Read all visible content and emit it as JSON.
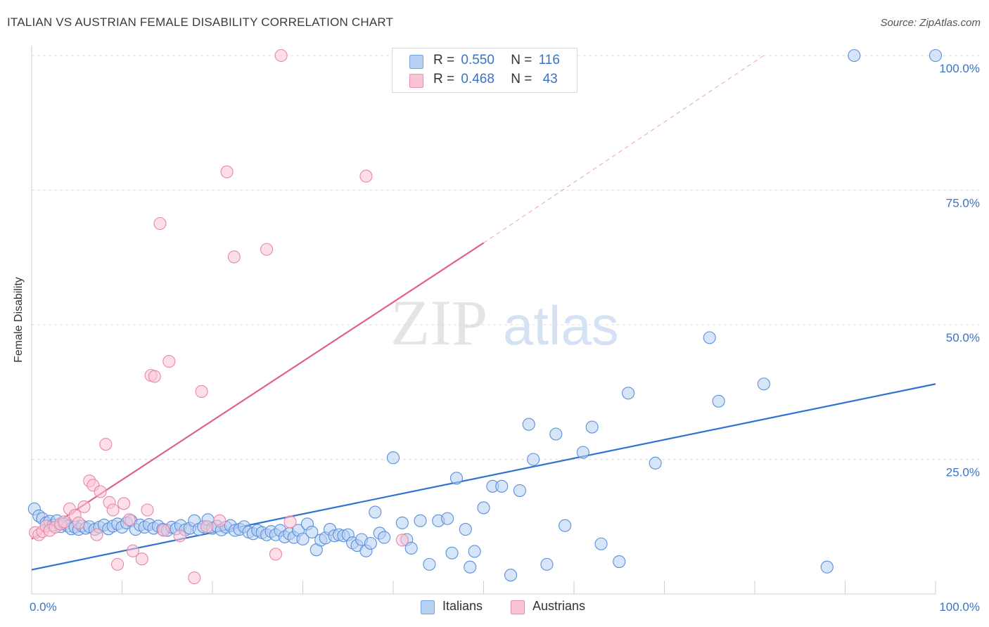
{
  "header": {
    "title": "ITALIAN VS AUSTRIAN FEMALE DISABILITY CORRELATION CHART",
    "source": "Source: ZipAtlas.com"
  },
  "watermark": {
    "zip": "ZIP",
    "atlas": "atlas"
  },
  "legend": {
    "rows": [
      {
        "r_label": "R =",
        "r_value": "0.550",
        "n_label": "N =",
        "n_value": "116",
        "color": "#b7d0f3",
        "border": "#7aa6e3"
      },
      {
        "r_label": "R =",
        "r_value": "0.468",
        "n_label": "N =",
        "n_value": "43",
        "color": "#fac4d5",
        "border": "#ec8fae"
      }
    ]
  },
  "bottom_legend": {
    "items": [
      "Italians",
      "Austrians"
    ]
  },
  "chart_data": {
    "type": "scatter",
    "title": "ITALIAN VS AUSTRIAN FEMALE DISABILITY CORRELATION CHART",
    "ylabel": "Female Disability",
    "xlabel": "",
    "xlim": [
      0,
      100
    ],
    "ylim": [
      0,
      100
    ],
    "x_tick_labels": [
      {
        "value": 0,
        "label": "0.0%"
      },
      {
        "value": 100,
        "label": "100.0%"
      }
    ],
    "y_tick_labels": [
      {
        "value": 25,
        "label": "25.0%"
      },
      {
        "value": 50,
        "label": "50.0%"
      },
      {
        "value": 75,
        "label": "75.0%"
      },
      {
        "value": 100,
        "label": "100.0%"
      }
    ],
    "grid": "horizontal dashed",
    "series": [
      {
        "name": "Italians",
        "color": "#5b8fdb",
        "fill": "#b7d0f3",
        "trend": {
          "x": [
            0,
            100
          ],
          "y": [
            4.5,
            39
          ],
          "color": "#2f72d0"
        },
        "points": [
          [
            0.3,
            15.8
          ],
          [
            0.8,
            14.5
          ],
          [
            1.2,
            14.0
          ],
          [
            1.6,
            13.2
          ],
          [
            2.0,
            13.5
          ],
          [
            2.4,
            12.8
          ],
          [
            2.8,
            13.6
          ],
          [
            3.2,
            12.5
          ],
          [
            3.6,
            13.0
          ],
          [
            4.0,
            12.6
          ],
          [
            4.4,
            12.1
          ],
          [
            4.8,
            12.4
          ],
          [
            5.2,
            12.0
          ],
          [
            5.6,
            12.6
          ],
          [
            6.0,
            12.2
          ],
          [
            6.4,
            12.5
          ],
          [
            7.0,
            12.0
          ],
          [
            7.5,
            12.4
          ],
          [
            8.0,
            12.8
          ],
          [
            8.5,
            12.1
          ],
          [
            9.0,
            12.6
          ],
          [
            9.5,
            13.0
          ],
          [
            10.0,
            12.4
          ],
          [
            10.5,
            13.2
          ],
          [
            11.0,
            13.6
          ],
          [
            11.5,
            12.0
          ],
          [
            12.0,
            12.8
          ],
          [
            12.5,
            12.4
          ],
          [
            13.0,
            12.9
          ],
          [
            13.5,
            12.2
          ],
          [
            14.0,
            12.6
          ],
          [
            14.5,
            12.0
          ],
          [
            15.0,
            11.8
          ],
          [
            15.5,
            12.4
          ],
          [
            16.0,
            12.1
          ],
          [
            16.5,
            12.7
          ],
          [
            17.0,
            11.9
          ],
          [
            17.5,
            12.2
          ],
          [
            18.0,
            13.6
          ],
          [
            18.5,
            12.0
          ],
          [
            19.0,
            12.5
          ],
          [
            19.5,
            13.8
          ],
          [
            20.0,
            12.2
          ],
          [
            20.5,
            12.6
          ],
          [
            21.0,
            11.9
          ],
          [
            21.5,
            12.4
          ],
          [
            22.0,
            12.7
          ],
          [
            22.5,
            11.8
          ],
          [
            23.0,
            12.0
          ],
          [
            23.5,
            12.5
          ],
          [
            24.0,
            11.5
          ],
          [
            24.5,
            11.2
          ],
          [
            25.0,
            11.8
          ],
          [
            25.5,
            11.4
          ],
          [
            26.0,
            11.0
          ],
          [
            26.5,
            11.6
          ],
          [
            27.0,
            11.0
          ],
          [
            27.5,
            11.8
          ],
          [
            28.0,
            10.6
          ],
          [
            28.5,
            11.2
          ],
          [
            29.0,
            10.5
          ],
          [
            29.5,
            11.8
          ],
          [
            30.0,
            10.2
          ],
          [
            30.5,
            13.0
          ],
          [
            31.0,
            11.5
          ],
          [
            31.5,
            8.2
          ],
          [
            32.0,
            10.0
          ],
          [
            32.5,
            10.4
          ],
          [
            33.0,
            12.0
          ],
          [
            33.5,
            10.8
          ],
          [
            34.0,
            11.0
          ],
          [
            34.5,
            10.8
          ],
          [
            35.0,
            11.0
          ],
          [
            35.5,
            9.5
          ],
          [
            36.0,
            9.0
          ],
          [
            36.5,
            10.1
          ],
          [
            37.0,
            8.0
          ],
          [
            37.5,
            9.4
          ],
          [
            38.0,
            15.2
          ],
          [
            38.5,
            11.3
          ],
          [
            39.0,
            10.5
          ],
          [
            40.0,
            25.3
          ],
          [
            41.0,
            13.2
          ],
          [
            41.5,
            10.1
          ],
          [
            42.0,
            8.5
          ],
          [
            43.0,
            13.6
          ],
          [
            44.0,
            5.5
          ],
          [
            45.0,
            13.6
          ],
          [
            46.0,
            14.0
          ],
          [
            46.5,
            7.6
          ],
          [
            47.0,
            21.5
          ],
          [
            48.0,
            12.0
          ],
          [
            48.5,
            5.0
          ],
          [
            49.0,
            7.9
          ],
          [
            50.0,
            16.0
          ],
          [
            51.0,
            20.0
          ],
          [
            52.0,
            20.0
          ],
          [
            53.0,
            3.5
          ],
          [
            54.0,
            19.2
          ],
          [
            55.0,
            31.5
          ],
          [
            55.5,
            25.0
          ],
          [
            57.0,
            5.5
          ],
          [
            58.0,
            29.7
          ],
          [
            59.0,
            12.7
          ],
          [
            61.0,
            26.3
          ],
          [
            62.0,
            31.0
          ],
          [
            63.0,
            9.3
          ],
          [
            66.0,
            37.3
          ],
          [
            69.0,
            24.3
          ],
          [
            75.0,
            47.6
          ],
          [
            76.0,
            35.8
          ],
          [
            81.0,
            39.0
          ],
          [
            88.0,
            5.0
          ],
          [
            91.0,
            100
          ],
          [
            100.0,
            100
          ],
          [
            65.0,
            6.0
          ]
        ]
      },
      {
        "name": "Austrians",
        "color": "#e887a8",
        "fill": "#fac4d5",
        "trend": {
          "x": [
            0,
            50
          ],
          "y": [
            10.2,
            65.2
          ],
          "dash_to": [
            81,
            100
          ],
          "color": "#e0608c"
        },
        "points": [
          [
            0.4,
            11.4
          ],
          [
            0.8,
            11.0
          ],
          [
            1.2,
            11.6
          ],
          [
            1.6,
            12.6
          ],
          [
            2.0,
            11.8
          ],
          [
            2.6,
            12.4
          ],
          [
            3.2,
            13.0
          ],
          [
            3.6,
            13.4
          ],
          [
            4.2,
            15.8
          ],
          [
            4.8,
            14.6
          ],
          [
            5.2,
            13.2
          ],
          [
            5.8,
            16.2
          ],
          [
            6.4,
            21.0
          ],
          [
            6.8,
            20.2
          ],
          [
            7.2,
            11.0
          ],
          [
            7.6,
            19.0
          ],
          [
            8.2,
            27.8
          ],
          [
            8.6,
            17.0
          ],
          [
            9.0,
            15.6
          ],
          [
            9.5,
            5.5
          ],
          [
            10.2,
            16.8
          ],
          [
            10.8,
            13.8
          ],
          [
            11.2,
            8.0
          ],
          [
            12.2,
            6.5
          ],
          [
            12.8,
            15.6
          ],
          [
            13.2,
            40.6
          ],
          [
            13.6,
            40.4
          ],
          [
            14.2,
            68.8
          ],
          [
            14.6,
            11.8
          ],
          [
            15.2,
            43.2
          ],
          [
            16.4,
            10.8
          ],
          [
            18.0,
            3.0
          ],
          [
            18.8,
            37.6
          ],
          [
            19.4,
            12.5
          ],
          [
            20.8,
            13.6
          ],
          [
            21.6,
            78.4
          ],
          [
            22.4,
            62.6
          ],
          [
            26.0,
            64.0
          ],
          [
            27.0,
            7.4
          ],
          [
            27.6,
            100
          ],
          [
            28.6,
            13.4
          ],
          [
            37.0,
            77.6
          ],
          [
            41.0,
            10.0
          ]
        ]
      }
    ]
  }
}
